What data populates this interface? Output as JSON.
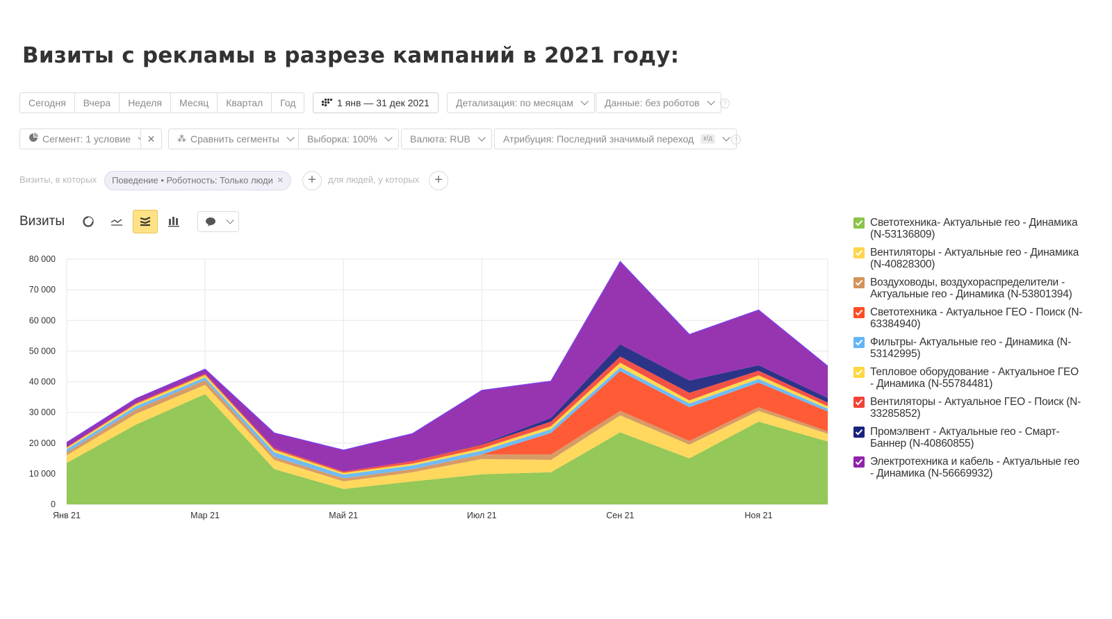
{
  "page": {
    "title": "Визиты с рекламы в разрезе кампаний в 2021 году:"
  },
  "toolbar1": {
    "periods": [
      "Сегодня",
      "Вчера",
      "Неделя",
      "Месяц",
      "Квартал",
      "Год"
    ],
    "date_range": "1 янв — 31 дек 2021",
    "detail": "Детализация: по месяцам",
    "data_filter": "Данные: без роботов"
  },
  "toolbar2": {
    "segment": "Сегмент: 1 условие",
    "compare": "Сравнить сегменты",
    "sample": "Выборка: 100%",
    "currency": "Валюта: RUB",
    "attribution": "Атрибуция: Последний значимый переход",
    "attribution_badge": "к/д"
  },
  "filters": {
    "visits_prefix": "Визиты, в которых",
    "tag": "Поведение • Роботность: Только люди",
    "people_prefix": "для людей, у которых"
  },
  "chart_header": {
    "label": "Визиты"
  },
  "chart_data": {
    "type": "area",
    "stacked": true,
    "x": [
      "Янв 21",
      "Фев 21",
      "Мар 21",
      "Апр 21",
      "Май 21",
      "Июн 21",
      "Июл 21",
      "Авг 21",
      "Сен 21",
      "Окт 21",
      "Ноя 21",
      "Дек 21"
    ],
    "x_tick_labels": [
      "Янв 21",
      "Мар 21",
      "Май 21",
      "Июл 21",
      "Сен 21",
      "Ноя 21"
    ],
    "y_ticks": [
      "0",
      "10 000",
      "20 000",
      "30 000",
      "40 000",
      "50 000",
      "60 000",
      "70 000",
      "80 000"
    ],
    "ylim": [
      0,
      80000
    ],
    "grid": true,
    "legend_position": "right",
    "series": [
      {
        "name": "Светотехника- Актуальные гео - Динамика (N-53136809)",
        "color": "#8bc34a",
        "values": [
          13500,
          26000,
          36000,
          11500,
          5000,
          7500,
          9800,
          10500,
          23500,
          15000,
          27000,
          20500
        ]
      },
      {
        "name": "Вентиляторы - Актуальные гео - Динамика (N-40828300)",
        "color": "#ffd54f",
        "values": [
          2500,
          3500,
          3000,
          3000,
          2500,
          3000,
          5000,
          4000,
          5500,
          4500,
          3500,
          2500
        ]
      },
      {
        "name": "Воздуховоды, воздухораспределители - Актуальные гео - Динамика (N-53801394)",
        "color": "#d4935a",
        "values": [
          1000,
          1500,
          1500,
          1000,
          1000,
          1000,
          1500,
          1800,
          1500,
          1200,
          1200,
          800
        ]
      },
      {
        "name": "Светотехника - Актуальное ГЕО - Поиск (N-63384940)",
        "color": "#ff4d26",
        "values": [
          0,
          0,
          0,
          0,
          0,
          0,
          0,
          7000,
          13000,
          11000,
          8000,
          6500
        ]
      },
      {
        "name": "Фильтры- Актуальные гео - Динамика (N-53142995)",
        "color": "#64b5f6",
        "values": [
          1000,
          1000,
          900,
          1500,
          1200,
          1200,
          1200,
          1200,
          1200,
          1200,
          1200,
          900
        ]
      },
      {
        "name": "Тепловое оборудование - Актуальное ГЕО - Динамика (N-55784481)",
        "color": "#ffd740",
        "values": [
          500,
          700,
          800,
          800,
          600,
          600,
          800,
          1000,
          1500,
          1000,
          1200,
          800
        ]
      },
      {
        "name": "Вентиляторы - Актуальное ГЕО - Поиск (N-33285852)",
        "color": "#f44336",
        "values": [
          200,
          300,
          400,
          500,
          400,
          800,
          1200,
          1500,
          2000,
          2500,
          1500,
          1200
        ]
      },
      {
        "name": "Промэлвент - Актуальные гео - Смарт-Баннер (N-40860855)",
        "color": "#1a237e",
        "values": [
          0,
          0,
          0,
          0,
          0,
          0,
          200,
          1200,
          4000,
          4000,
          1800,
          1500
        ]
      },
      {
        "name": "Электротехника и кабель - Актуальные гео - Динамика (N-56669932)",
        "color": "#8e24aa",
        "values": [
          1500,
          1500,
          1500,
          5000,
          7000,
          9000,
          17500,
          12000,
          27000,
          15000,
          18000,
          10400
        ]
      }
    ]
  }
}
